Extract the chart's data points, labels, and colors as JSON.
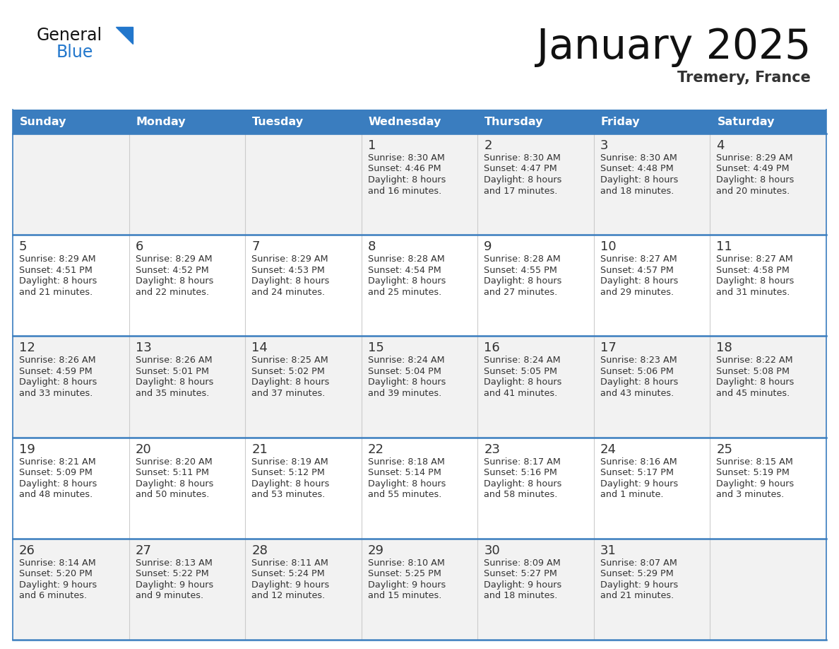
{
  "title": "January 2025",
  "subtitle": "Tremery, France",
  "days_of_week": [
    "Sunday",
    "Monday",
    "Tuesday",
    "Wednesday",
    "Thursday",
    "Friday",
    "Saturday"
  ],
  "header_bg": "#3a7dbf",
  "header_text": "#ffffff",
  "row_bg_odd": "#f2f2f2",
  "row_bg_even": "#ffffff",
  "cell_text_color": "#333333",
  "day_number_color": "#333333",
  "border_color": "#3a7dbf",
  "title_color": "#111111",
  "subtitle_color": "#333333",
  "logo_general_color": "#111111",
  "logo_blue_color": "#2277cc",
  "logo_triangle_color": "#2277cc",
  "calendar_data": [
    [
      {
        "day": null,
        "sunrise": null,
        "sunset": null,
        "daylight_h": null,
        "daylight_m": null
      },
      {
        "day": null,
        "sunrise": null,
        "sunset": null,
        "daylight_h": null,
        "daylight_m": null
      },
      {
        "day": null,
        "sunrise": null,
        "sunset": null,
        "daylight_h": null,
        "daylight_m": null
      },
      {
        "day": 1,
        "sunrise": "8:30 AM",
        "sunset": "4:46 PM",
        "daylight_h": "8 hours",
        "daylight_m": "and 16 minutes."
      },
      {
        "day": 2,
        "sunrise": "8:30 AM",
        "sunset": "4:47 PM",
        "daylight_h": "8 hours",
        "daylight_m": "and 17 minutes."
      },
      {
        "day": 3,
        "sunrise": "8:30 AM",
        "sunset": "4:48 PM",
        "daylight_h": "8 hours",
        "daylight_m": "and 18 minutes."
      },
      {
        "day": 4,
        "sunrise": "8:29 AM",
        "sunset": "4:49 PM",
        "daylight_h": "8 hours",
        "daylight_m": "and 20 minutes."
      }
    ],
    [
      {
        "day": 5,
        "sunrise": "8:29 AM",
        "sunset": "4:51 PM",
        "daylight_h": "8 hours",
        "daylight_m": "and 21 minutes."
      },
      {
        "day": 6,
        "sunrise": "8:29 AM",
        "sunset": "4:52 PM",
        "daylight_h": "8 hours",
        "daylight_m": "and 22 minutes."
      },
      {
        "day": 7,
        "sunrise": "8:29 AM",
        "sunset": "4:53 PM",
        "daylight_h": "8 hours",
        "daylight_m": "and 24 minutes."
      },
      {
        "day": 8,
        "sunrise": "8:28 AM",
        "sunset": "4:54 PM",
        "daylight_h": "8 hours",
        "daylight_m": "and 25 minutes."
      },
      {
        "day": 9,
        "sunrise": "8:28 AM",
        "sunset": "4:55 PM",
        "daylight_h": "8 hours",
        "daylight_m": "and 27 minutes."
      },
      {
        "day": 10,
        "sunrise": "8:27 AM",
        "sunset": "4:57 PM",
        "daylight_h": "8 hours",
        "daylight_m": "and 29 minutes."
      },
      {
        "day": 11,
        "sunrise": "8:27 AM",
        "sunset": "4:58 PM",
        "daylight_h": "8 hours",
        "daylight_m": "and 31 minutes."
      }
    ],
    [
      {
        "day": 12,
        "sunrise": "8:26 AM",
        "sunset": "4:59 PM",
        "daylight_h": "8 hours",
        "daylight_m": "and 33 minutes."
      },
      {
        "day": 13,
        "sunrise": "8:26 AM",
        "sunset": "5:01 PM",
        "daylight_h": "8 hours",
        "daylight_m": "and 35 minutes."
      },
      {
        "day": 14,
        "sunrise": "8:25 AM",
        "sunset": "5:02 PM",
        "daylight_h": "8 hours",
        "daylight_m": "and 37 minutes."
      },
      {
        "day": 15,
        "sunrise": "8:24 AM",
        "sunset": "5:04 PM",
        "daylight_h": "8 hours",
        "daylight_m": "and 39 minutes."
      },
      {
        "day": 16,
        "sunrise": "8:24 AM",
        "sunset": "5:05 PM",
        "daylight_h": "8 hours",
        "daylight_m": "and 41 minutes."
      },
      {
        "day": 17,
        "sunrise": "8:23 AM",
        "sunset": "5:06 PM",
        "daylight_h": "8 hours",
        "daylight_m": "and 43 minutes."
      },
      {
        "day": 18,
        "sunrise": "8:22 AM",
        "sunset": "5:08 PM",
        "daylight_h": "8 hours",
        "daylight_m": "and 45 minutes."
      }
    ],
    [
      {
        "day": 19,
        "sunrise": "8:21 AM",
        "sunset": "5:09 PM",
        "daylight_h": "8 hours",
        "daylight_m": "and 48 minutes."
      },
      {
        "day": 20,
        "sunrise": "8:20 AM",
        "sunset": "5:11 PM",
        "daylight_h": "8 hours",
        "daylight_m": "and 50 minutes."
      },
      {
        "day": 21,
        "sunrise": "8:19 AM",
        "sunset": "5:12 PM",
        "daylight_h": "8 hours",
        "daylight_m": "and 53 minutes."
      },
      {
        "day": 22,
        "sunrise": "8:18 AM",
        "sunset": "5:14 PM",
        "daylight_h": "8 hours",
        "daylight_m": "and 55 minutes."
      },
      {
        "day": 23,
        "sunrise": "8:17 AM",
        "sunset": "5:16 PM",
        "daylight_h": "8 hours",
        "daylight_m": "and 58 minutes."
      },
      {
        "day": 24,
        "sunrise": "8:16 AM",
        "sunset": "5:17 PM",
        "daylight_h": "9 hours",
        "daylight_m": "and 1 minute."
      },
      {
        "day": 25,
        "sunrise": "8:15 AM",
        "sunset": "5:19 PM",
        "daylight_h": "9 hours",
        "daylight_m": "and 3 minutes."
      }
    ],
    [
      {
        "day": 26,
        "sunrise": "8:14 AM",
        "sunset": "5:20 PM",
        "daylight_h": "9 hours",
        "daylight_m": "and 6 minutes."
      },
      {
        "day": 27,
        "sunrise": "8:13 AM",
        "sunset": "5:22 PM",
        "daylight_h": "9 hours",
        "daylight_m": "and 9 minutes."
      },
      {
        "day": 28,
        "sunrise": "8:11 AM",
        "sunset": "5:24 PM",
        "daylight_h": "9 hours",
        "daylight_m": "and 12 minutes."
      },
      {
        "day": 29,
        "sunrise": "8:10 AM",
        "sunset": "5:25 PM",
        "daylight_h": "9 hours",
        "daylight_m": "and 15 minutes."
      },
      {
        "day": 30,
        "sunrise": "8:09 AM",
        "sunset": "5:27 PM",
        "daylight_h": "9 hours",
        "daylight_m": "and 18 minutes."
      },
      {
        "day": 31,
        "sunrise": "8:07 AM",
        "sunset": "5:29 PM",
        "daylight_h": "9 hours",
        "daylight_m": "and 21 minutes."
      },
      {
        "day": null,
        "sunrise": null,
        "sunset": null,
        "daylight_h": null,
        "daylight_m": null
      }
    ]
  ]
}
